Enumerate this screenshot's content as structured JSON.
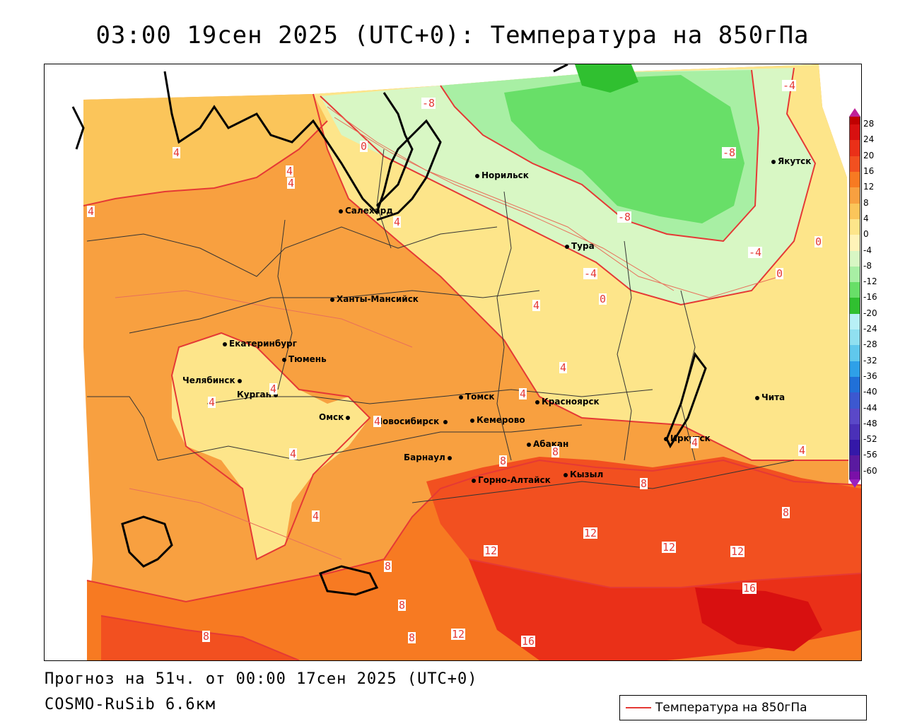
{
  "title": "03:00 19сен 2025 (UTC+0): Температура на 850гПа",
  "footer": {
    "forecast": "Прогноз на 51ч. от 00:00 17сен 2025 (UTC+0)",
    "model": "COSMO-RuSib 6.6км"
  },
  "legend": {
    "line_label": "Температура на 850гПа",
    "line_color": "#e53935"
  },
  "cities": [
    {
      "name": "Норильск"
    },
    {
      "name": "Якутск"
    },
    {
      "name": "Салехард"
    },
    {
      "name": "Тура"
    },
    {
      "name": "Ханты-Мансийск"
    },
    {
      "name": "Екатеринбург"
    },
    {
      "name": "Тюмень"
    },
    {
      "name": "Челябинск"
    },
    {
      "name": "Курган"
    },
    {
      "name": "Омск"
    },
    {
      "name": "Новосибирск"
    },
    {
      "name": "Томск"
    },
    {
      "name": "Кемерово"
    },
    {
      "name": "Красноярск"
    },
    {
      "name": "Абакан"
    },
    {
      "name": "Барнаул"
    },
    {
      "name": "Горно-Алтайск"
    },
    {
      "name": "Кызыл"
    },
    {
      "name": "Иркутск"
    },
    {
      "name": "Чита"
    }
  ],
  "contour_labels": [
    "-8",
    "-4",
    "0",
    "4",
    "8",
    "12",
    "16",
    "-8",
    "-4",
    "0",
    "4",
    "8",
    "12",
    "16",
    "4",
    "4",
    "4",
    "4",
    "4",
    "4",
    "4",
    "4",
    "4",
    "4",
    "-4",
    "-4",
    "-4",
    "-8",
    "0",
    "0",
    "8",
    "8",
    "8",
    "8",
    "8",
    "8",
    "12",
    "12",
    "12",
    "12",
    "16",
    "0",
    "-4",
    "4",
    "4",
    "4"
  ],
  "colorbar": {
    "labels": [
      "28",
      "24",
      "20",
      "16",
      "12",
      "8",
      "4",
      "0",
      "-4",
      "-8",
      "-12",
      "-16",
      "-20",
      "-24",
      "-28",
      "-32",
      "-36",
      "-40",
      "-44",
      "-48",
      "-52",
      "-56",
      "-60"
    ],
    "colors": [
      "#c00000",
      "#d81010",
      "#ea3018",
      "#f25020",
      "#f77a22",
      "#f8a040",
      "#fbc55a",
      "#fde58a",
      "#fff3b8",
      "#d8f7c4",
      "#a8efa4",
      "#68df68",
      "#30c030",
      "#b8f0f6",
      "#90e0f0",
      "#60c8ec",
      "#2ea0e8",
      "#2070d8",
      "#3c58d0",
      "#5a48c8",
      "#4a30b8",
      "#3418a8",
      "#5a1aa0",
      "#7a10a8"
    ]
  }
}
